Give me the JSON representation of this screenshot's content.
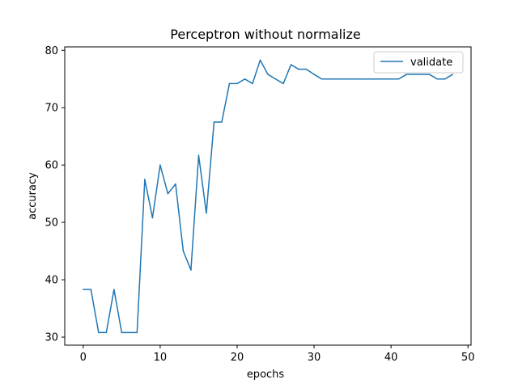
{
  "chart_data": {
    "type": "line",
    "title": "Perceptron without normalize",
    "xlabel": "epochs",
    "ylabel": "accuracy",
    "xlim": [
      -2.4,
      50.4
    ],
    "ylim": [
      28.6,
      80.6
    ],
    "xticks": [
      0,
      10,
      20,
      30,
      40,
      50
    ],
    "yticks": [
      30,
      40,
      50,
      60,
      70,
      80
    ],
    "grid": false,
    "legend_position": "upper right",
    "series": [
      {
        "name": "validate",
        "color": "#1f77b4",
        "x": [
          0,
          1,
          2,
          3,
          4,
          5,
          6,
          7,
          8,
          9,
          10,
          11,
          12,
          13,
          14,
          15,
          16,
          17,
          18,
          19,
          20,
          21,
          22,
          23,
          24,
          25,
          26,
          27,
          28,
          29,
          30,
          31,
          32,
          33,
          34,
          35,
          36,
          37,
          38,
          39,
          40,
          41,
          42,
          43,
          44,
          45,
          46,
          47,
          48
        ],
        "y": [
          38.3,
          38.3,
          30.8,
          30.8,
          38.3,
          30.8,
          30.8,
          30.8,
          57.5,
          50.8,
          60.0,
          55.0,
          56.7,
          45.0,
          41.7,
          61.7,
          51.6,
          67.5,
          67.5,
          74.2,
          74.2,
          75.0,
          74.2,
          78.3,
          75.8,
          75.0,
          74.2,
          77.5,
          76.7,
          76.7,
          75.8,
          75.0,
          75.0,
          75.0,
          75.0,
          75.0,
          75.0,
          75.0,
          75.0,
          75.0,
          75.0,
          75.0,
          75.8,
          75.8,
          75.8,
          75.8,
          75.0,
          75.0,
          75.8
        ]
      }
    ]
  }
}
